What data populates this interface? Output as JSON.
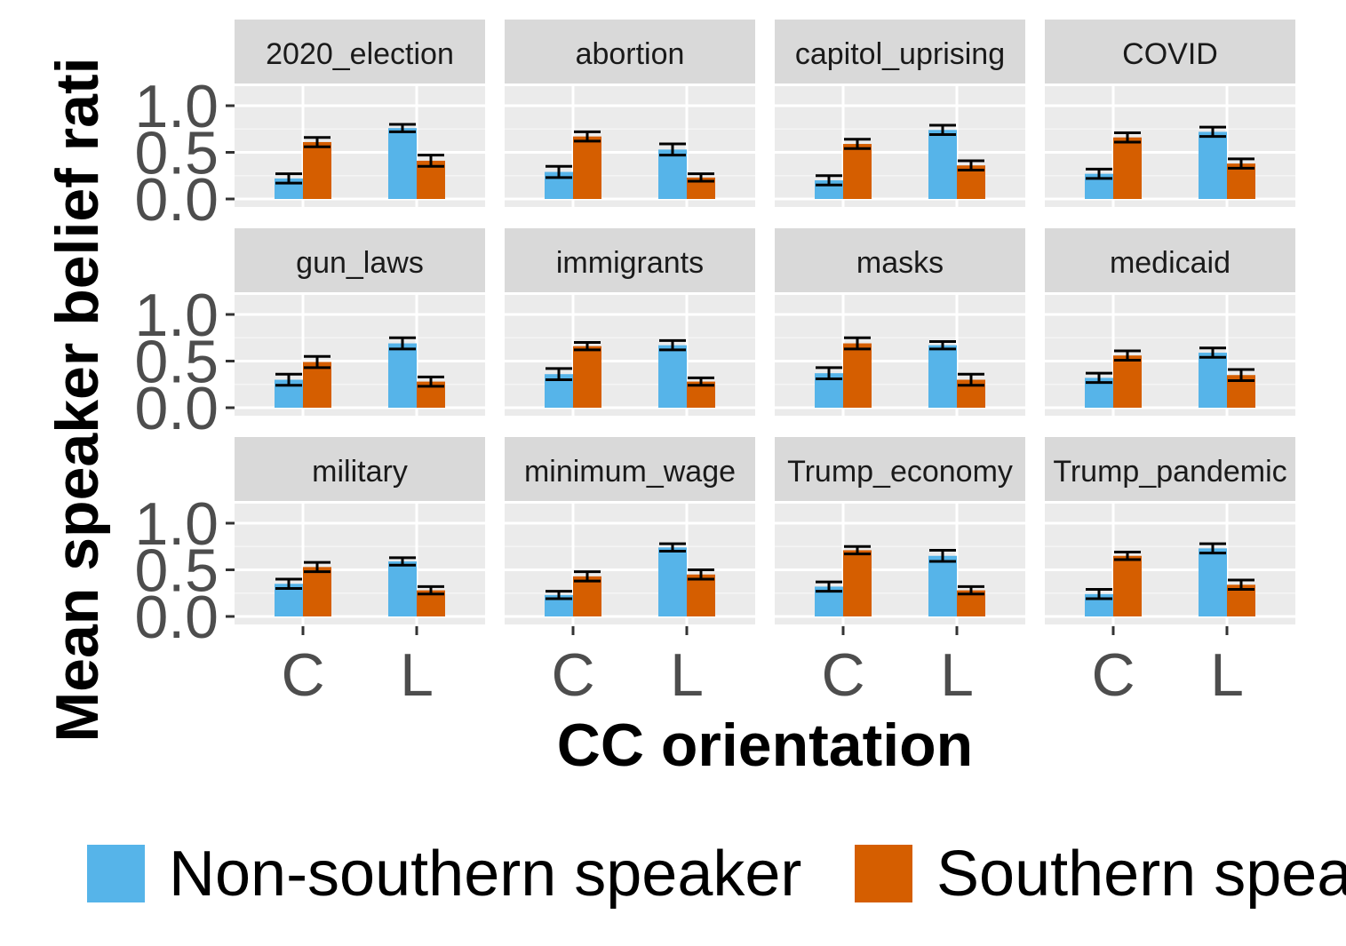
{
  "chart_data": {
    "type": "bar",
    "facet_layout": "3x4",
    "xlabel": "CC orientation",
    "ylabel": "Mean speaker belief rati",
    "categories": [
      "C",
      "L"
    ],
    "ylim": [
      0,
      1.0
    ],
    "yticks": [
      "0.0",
      "0.5",
      "1.0"
    ],
    "grid": true,
    "legend_position": "bottom",
    "series_colors": [
      "#56B4E9",
      "#D55E00"
    ],
    "legend": [
      "Non-southern speaker",
      "Southern spea"
    ],
    "series_names": [
      "Non-southern speaker",
      "Southern speaker"
    ],
    "facets": [
      {
        "title": "2020_election",
        "series": [
          {
            "name": "Non-southern speaker",
            "values": [
              0.22,
              0.76
            ],
            "errors": [
              0.05,
              0.04
            ]
          },
          {
            "name": "Southern speaker",
            "values": [
              0.61,
              0.41
            ],
            "errors": [
              0.05,
              0.06
            ]
          }
        ]
      },
      {
        "title": "abortion",
        "series": [
          {
            "name": "Non-southern speaker",
            "values": [
              0.29,
              0.53
            ],
            "errors": [
              0.06,
              0.06
            ]
          },
          {
            "name": "Southern speaker",
            "values": [
              0.67,
              0.23
            ],
            "errors": [
              0.05,
              0.04
            ]
          }
        ]
      },
      {
        "title": "capitol_uprising",
        "series": [
          {
            "name": "Non-southern speaker",
            "values": [
              0.2,
              0.74
            ],
            "errors": [
              0.05,
              0.05
            ]
          },
          {
            "name": "Southern speaker",
            "values": [
              0.59,
              0.36
            ],
            "errors": [
              0.05,
              0.05
            ]
          }
        ]
      },
      {
        "title": "COVID",
        "series": [
          {
            "name": "Non-southern speaker",
            "values": [
              0.27,
              0.72
            ],
            "errors": [
              0.05,
              0.05
            ]
          },
          {
            "name": "Southern speaker",
            "values": [
              0.66,
              0.38
            ],
            "errors": [
              0.05,
              0.05
            ]
          }
        ]
      },
      {
        "title": "gun_laws",
        "series": [
          {
            "name": "Non-southern speaker",
            "values": [
              0.3,
              0.69
            ],
            "errors": [
              0.06,
              0.06
            ]
          },
          {
            "name": "Southern speaker",
            "values": [
              0.49,
              0.28
            ],
            "errors": [
              0.06,
              0.05
            ]
          }
        ]
      },
      {
        "title": "immigrants",
        "series": [
          {
            "name": "Non-southern speaker",
            "values": [
              0.36,
              0.67
            ],
            "errors": [
              0.06,
              0.05
            ]
          },
          {
            "name": "Southern speaker",
            "values": [
              0.66,
              0.28
            ],
            "errors": [
              0.04,
              0.04
            ]
          }
        ]
      },
      {
        "title": "masks",
        "series": [
          {
            "name": "Non-southern speaker",
            "values": [
              0.37,
              0.67
            ],
            "errors": [
              0.06,
              0.04
            ]
          },
          {
            "name": "Southern speaker",
            "values": [
              0.69,
              0.3
            ],
            "errors": [
              0.06,
              0.06
            ]
          }
        ]
      },
      {
        "title": "medicaid",
        "series": [
          {
            "name": "Non-southern speaker",
            "values": [
              0.32,
              0.59
            ],
            "errors": [
              0.05,
              0.05
            ]
          },
          {
            "name": "Southern speaker",
            "values": [
              0.56,
              0.35
            ],
            "errors": [
              0.05,
              0.06
            ]
          }
        ]
      },
      {
        "title": "military",
        "series": [
          {
            "name": "Non-southern speaker",
            "values": [
              0.35,
              0.59
            ],
            "errors": [
              0.05,
              0.04
            ]
          },
          {
            "name": "Southern speaker",
            "values": [
              0.53,
              0.28
            ],
            "errors": [
              0.05,
              0.04
            ]
          }
        ]
      },
      {
        "title": "minimum_wage",
        "series": [
          {
            "name": "Non-southern speaker",
            "values": [
              0.23,
              0.74
            ],
            "errors": [
              0.04,
              0.04
            ]
          },
          {
            "name": "Southern speaker",
            "values": [
              0.43,
              0.45
            ],
            "errors": [
              0.05,
              0.05
            ]
          }
        ]
      },
      {
        "title": "Trump_economy",
        "series": [
          {
            "name": "Non-southern speaker",
            "values": [
              0.32,
              0.65
            ],
            "errors": [
              0.05,
              0.06
            ]
          },
          {
            "name": "Southern speaker",
            "values": [
              0.71,
              0.28
            ],
            "errors": [
              0.04,
              0.04
            ]
          }
        ]
      },
      {
        "title": "Trump_pandemic",
        "series": [
          {
            "name": "Non-southern speaker",
            "values": [
              0.24,
              0.73
            ],
            "errors": [
              0.05,
              0.05
            ]
          },
          {
            "name": "Southern speaker",
            "values": [
              0.65,
              0.34
            ],
            "errors": [
              0.04,
              0.05
            ]
          }
        ]
      }
    ]
  }
}
